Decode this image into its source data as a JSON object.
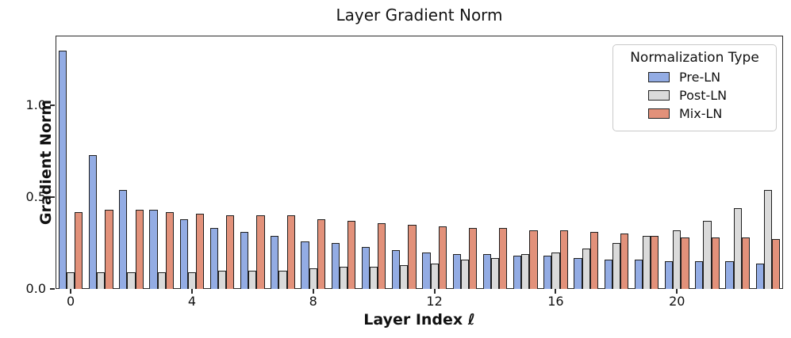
{
  "chart_data": {
    "type": "bar",
    "title": "Layer Gradient Norm",
    "xlabel": "Layer Index ℓ",
    "ylabel": "Gradient Norm",
    "categories": [
      0,
      1,
      2,
      3,
      4,
      5,
      6,
      7,
      8,
      9,
      10,
      11,
      12,
      13,
      14,
      15,
      16,
      17,
      18,
      19,
      20,
      21,
      22,
      23
    ],
    "series": [
      {
        "name": "Pre-LN",
        "color": "#93ACE4",
        "values": [
          1.3,
          0.73,
          0.54,
          0.43,
          0.38,
          0.33,
          0.31,
          0.29,
          0.26,
          0.25,
          0.23,
          0.21,
          0.2,
          0.19,
          0.19,
          0.18,
          0.18,
          0.17,
          0.16,
          0.16,
          0.15,
          0.15,
          0.15,
          0.14
        ]
      },
      {
        "name": "Post-LN",
        "color": "#DADADA",
        "values": [
          0.09,
          0.09,
          0.09,
          0.09,
          0.09,
          0.1,
          0.1,
          0.1,
          0.11,
          0.12,
          0.12,
          0.13,
          0.14,
          0.16,
          0.17,
          0.19,
          0.2,
          0.22,
          0.25,
          0.29,
          0.32,
          0.37,
          0.44,
          0.54
        ]
      },
      {
        "name": "Mix-LN",
        "color": "#E2917A",
        "values": [
          0.42,
          0.43,
          0.43,
          0.42,
          0.41,
          0.4,
          0.4,
          0.4,
          0.38,
          0.37,
          0.36,
          0.35,
          0.34,
          0.33,
          0.33,
          0.32,
          0.32,
          0.31,
          0.3,
          0.29,
          0.28,
          0.28,
          0.28,
          0.27
        ]
      }
    ],
    "ylim": [
      0,
      1.38
    ],
    "yticks": [
      {
        "v": 0.0,
        "label": "0.0"
      },
      {
        "v": 0.5,
        "label": "0.5"
      },
      {
        "v": 1.0,
        "label": "1.0"
      }
    ],
    "xticks": [
      {
        "v": 0,
        "label": "0"
      },
      {
        "v": 4,
        "label": "4"
      },
      {
        "v": 8,
        "label": "8"
      },
      {
        "v": 12,
        "label": "12"
      },
      {
        "v": 16,
        "label": "16"
      },
      {
        "v": 20,
        "label": "20"
      }
    ],
    "legend_title": "Normalization Type",
    "legend_position": "upper right",
    "grid": false,
    "bar_edge_color": "#1f1f1f"
  }
}
